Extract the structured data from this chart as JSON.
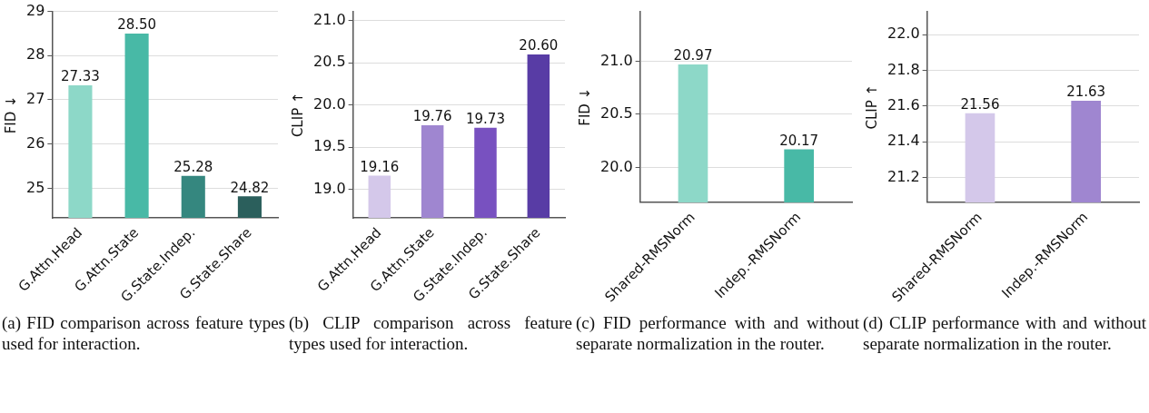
{
  "chart_data": [
    {
      "type": "bar",
      "categories": [
        "G.Attn.Head",
        "G.Attn.State",
        "G.State.Indep.",
        "G.State.Share"
      ],
      "ylabel": "FID ↓",
      "series": [
        {
          "values": [
            27.33,
            28.5,
            25.28,
            24.82
          ],
          "colors": [
            "#8dd8c8",
            "#48b9a6",
            "#35877f",
            "#2b5f5c"
          ],
          "value_labels": [
            "27.33",
            "28.50",
            "25.28",
            "24.82"
          ]
        }
      ],
      "ylim": [
        24.33,
        29
      ],
      "yticks": [
        25,
        26,
        27,
        28,
        29
      ],
      "grid": "y",
      "legend": false,
      "annotations": [
        "(a) FID comparison across feature types used for interaction."
      ]
    },
    {
      "type": "bar",
      "categories": [
        "G.Attn.Head",
        "G.Attn.State",
        "G.State.Indep.",
        "G.State.Share"
      ],
      "ylabel": "CLIP ↑",
      "series": [
        {
          "values": [
            19.16,
            19.76,
            19.73,
            20.6
          ],
          "colors": [
            "#d4c8ea",
            "#9f86d0",
            "#7851c0",
            "#583ca5"
          ],
          "value_labels": [
            "19.16",
            "19.76",
            "19.73",
            "20.60"
          ]
        }
      ],
      "ylim": [
        18.66,
        21.11
      ],
      "yticks": [
        {
          "value": 19,
          "label": "19.0"
        },
        19.5,
        {
          "value": 20,
          "label": "20.0"
        },
        20.5,
        {
          "value": 21,
          "label": "21.0"
        }
      ],
      "grid": "y",
      "legend": false,
      "annotations": [
        "(b) CLIP comparison across feature types used for interaction."
      ]
    },
    {
      "type": "bar",
      "categories": [
        "Shared-RMSNorm",
        "Indep.-RMSNorm"
      ],
      "ylabel": "FID ↓",
      "series": [
        {
          "values": [
            20.97,
            20.17
          ],
          "colors": [
            "#8dd8c8",
            "#48b9a6"
          ],
          "value_labels": [
            "20.97",
            "20.17"
          ]
        }
      ],
      "ylim": [
        19.67,
        21.47
      ],
      "yticks": [
        {
          "value": 20,
          "label": "20.0"
        },
        20.5,
        {
          "value": 21,
          "label": "21.0"
        }
      ],
      "grid": "y",
      "legend": false,
      "annotations": [
        "(c) FID performance with and without separate normalization in the router."
      ]
    },
    {
      "type": "bar",
      "categories": [
        "Shared-RMSNorm",
        "Indep.-RMSNorm"
      ],
      "ylabel": "CLIP ↑",
      "series": [
        {
          "values": [
            21.56,
            21.63
          ],
          "colors": [
            "#d4c8ea",
            "#9f86d0"
          ],
          "value_labels": [
            "21.56",
            "21.63"
          ]
        }
      ],
      "ylim": [
        21.06,
        22.13
      ],
      "yticks": [
        21.2,
        21.4,
        21.6,
        21.8,
        {
          "value": 22,
          "label": "22.0"
        }
      ],
      "grid": "y",
      "legend": false,
      "annotations": [
        "(d) CLIP performance with and without separate normalization in the router."
      ]
    }
  ]
}
